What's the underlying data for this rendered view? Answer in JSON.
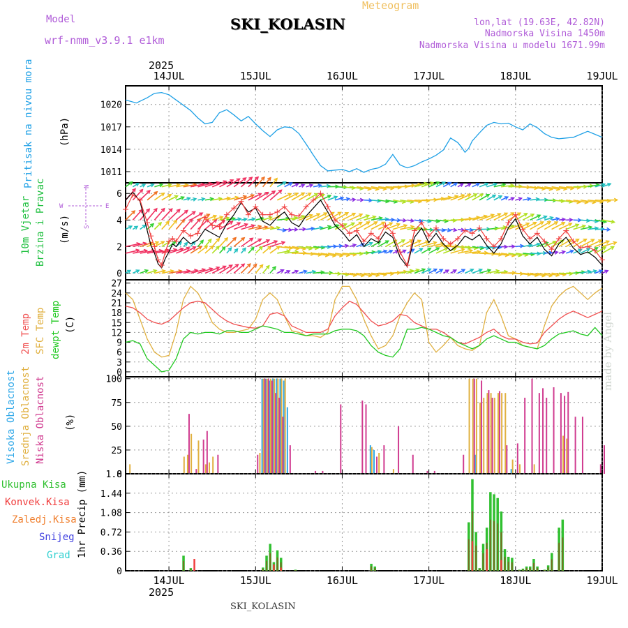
{
  "header": {
    "model_label": "Model",
    "model_value": "wrf-nmm_v3.9.1 e1km",
    "meteogram": "Meteogram",
    "station": "SKI_KOLASIN",
    "lonlat": "lon,lat (19.63E, 42.82N)",
    "elevation": "Nadmorska Visina 1450m",
    "model_elevation": "Nadmorska Visina u modelu 1671.99m"
  },
  "footer": {
    "station": "SKI_KOLASIN",
    "watermark": "made by Angel"
  },
  "time_axis": {
    "year": "2025",
    "days": [
      "14JUL",
      "15JUL",
      "16JUL",
      "17JUL",
      "18JUL",
      "19JUL"
    ]
  },
  "colors": {
    "pressure": "#1ea0e6",
    "wind_label": "#20c040",
    "wind_speed": "#000000",
    "wind_gust": "#f03c3c",
    "t2m": "#f05050",
    "tsfc": "#e0b040",
    "dewpt": "#20c820",
    "cloud_high": "#30a8e8",
    "cloud_mid": "#e0b040",
    "cloud_low": "#d03c90",
    "precip_total": "#30c030",
    "precip_conv": "#f03c3c",
    "precip_frozen": "#f08030",
    "snow": "#4040e0",
    "graupel": "#30d0d0",
    "compass": "#b05cd8"
  },
  "panels": {
    "pressure": {
      "label": "Pritisak na nivou mora",
      "unit": "(hPa)",
      "ticks": [
        "1020",
        "1017",
        "1014",
        "1011"
      ]
    },
    "wind": {
      "label1": "10m Vjetar",
      "label2": "Brzina i Pravac",
      "unit": "(m/s)",
      "ticks": [
        "6",
        "4",
        "2",
        "0"
      ],
      "compass": {
        "w": "W",
        "e": "E",
        "n": "N",
        "s": "S"
      }
    },
    "temp": {
      "label_t2m": "2m Temp",
      "label_sfc": "SFC Temp",
      "label_dew": "dewpt Temp",
      "unit": "(C)",
      "ticks": [
        "27",
        "24",
        "21",
        "18",
        "15",
        "12",
        "9",
        "6",
        "3",
        "0"
      ]
    },
    "cloud": {
      "label_high": "Visoka Oblacnost",
      "label_mid": "Srednja Oblacnost",
      "label_low": "Niska Oblacnost",
      "unit": "(%)",
      "ticks": [
        "100",
        "75",
        "50",
        "25",
        "0"
      ]
    },
    "precip": {
      "label_total": "Ukupna Kisa",
      "label_conv": "Konvek.Kisa",
      "label_frozen": "Zaledj.Kisa",
      "label_snow": "Snijeg",
      "label_graupel": "Grad",
      "unit": "1hr Precip (mm)",
      "ticks": [
        "1.8",
        "1.44",
        "1.08",
        "0.72",
        "0.36",
        "0"
      ]
    }
  },
  "chart_data": {
    "type": "line",
    "x_hours": [
      -12,
      120
    ],
    "pressure": {
      "ylim": [
        1009.5,
        1022.5
      ],
      "x": [
        -12,
        -9,
        -6,
        -4,
        -2,
        0,
        2,
        4,
        6,
        8,
        10,
        12,
        14,
        16,
        18,
        20,
        22,
        24,
        26,
        28,
        30,
        32,
        34,
        36,
        38,
        40,
        42,
        44,
        46,
        48,
        50,
        52,
        54,
        56,
        58,
        60,
        62,
        64,
        66,
        68,
        70,
        72,
        74,
        76,
        78,
        80,
        81,
        82,
        83,
        84,
        86,
        88,
        90,
        92,
        94,
        96,
        98,
        100,
        102,
        104,
        106,
        108,
        110,
        112,
        114,
        116,
        118,
        120
      ],
      "y": [
        1020.6,
        1020.2,
        1020.9,
        1021.5,
        1021.6,
        1021.3,
        1020.6,
        1019.9,
        1019.2,
        1018.2,
        1017.4,
        1017.6,
        1018.9,
        1019.3,
        1018.6,
        1017.8,
        1018.4,
        1017.4,
        1016.5,
        1015.7,
        1016.6,
        1017.0,
        1016.9,
        1016.1,
        1014.7,
        1013.2,
        1011.8,
        1011.1,
        1011.2,
        1011.3,
        1011.0,
        1011.4,
        1010.9,
        1011.3,
        1011.5,
        1012.0,
        1013.3,
        1011.9,
        1011.5,
        1011.8,
        1012.3,
        1012.7,
        1013.2,
        1013.9,
        1015.5,
        1014.9,
        1014.3,
        1013.6,
        1014.1,
        1015.1,
        1016.2,
        1017.2,
        1017.6,
        1017.4,
        1017.5,
        1017.0,
        1016.6,
        1017.4,
        1016.9,
        1016.1,
        1015.6,
        1015.4,
        1015.5,
        1015.6,
        1016.0,
        1016.4,
        1016.0,
        1015.6
      ]
    },
    "wind_speed": {
      "ylim": [
        -0.5,
        6.8
      ],
      "x": [
        -12,
        -10,
        -8,
        -6,
        -5,
        -4,
        -3,
        -2,
        -1,
        0,
        1,
        2,
        4,
        6,
        8,
        10,
        12,
        14,
        16,
        18,
        20,
        22,
        24,
        26,
        28,
        30,
        32,
        34,
        36,
        38,
        40,
        42,
        44,
        46,
        48,
        50,
        52,
        54,
        56,
        58,
        60,
        62,
        64,
        66,
        68,
        70,
        72,
        74,
        76,
        78,
        80,
        82,
        84,
        86,
        88,
        90,
        92,
        94,
        96,
        98,
        100,
        102,
        104,
        106,
        108,
        110,
        112,
        114,
        116,
        118,
        120
      ],
      "y": [
        5.5,
        6.1,
        5.4,
        3.2,
        2.1,
        1.5,
        0.7,
        0.4,
        1.1,
        1.6,
        2.2,
        2.0,
        2.7,
        2.2,
        2.5,
        3.3,
        3.0,
        2.7,
        3.7,
        4.4,
        5.3,
        4.6,
        4.9,
        3.9,
        3.6,
        4.2,
        4.6,
        3.8,
        3.5,
        4.3,
        4.9,
        5.5,
        4.6,
        3.6,
        3.1,
        2.4,
        2.9,
        2.0,
        2.6,
        2.3,
        3.1,
        2.7,
        1.2,
        0.5,
        2.7,
        3.4,
        2.3,
        3.0,
        2.2,
        1.7,
        2.1,
        2.8,
        2.5,
        2.9,
        2.1,
        1.5,
        2.2,
        3.4,
        4.1,
        2.8,
        2.2,
        2.7,
        1.8,
        1.3,
        2.2,
        2.7,
        1.9,
        1.4,
        1.6,
        1.2,
        0.6
      ]
    },
    "wind_gust": {
      "x": [
        -12,
        -10,
        -8,
        -6,
        -5,
        -4,
        -3,
        -2,
        -1,
        0,
        1,
        2,
        4,
        6,
        8,
        10,
        12,
        14,
        16,
        18,
        20,
        22,
        24,
        26,
        28,
        30,
        32,
        34,
        36,
        38,
        40,
        42,
        44,
        46,
        48,
        50,
        52,
        54,
        56,
        58,
        60,
        62,
        64,
        66,
        68,
        70,
        72,
        74,
        76,
        78,
        80,
        82,
        84,
        86,
        88,
        90,
        92,
        94,
        96,
        98,
        100,
        102,
        104,
        106,
        108,
        110,
        112,
        114,
        116,
        118,
        120
      ],
      "y": [
        4.8,
        5.9,
        5.5,
        3.8,
        2.8,
        2.0,
        1.0,
        0.6,
        1.6,
        2.4,
        2.6,
        2.4,
        3.2,
        2.8,
        3.0,
        4.2,
        3.6,
        3.5,
        4.4,
        4.9,
        5.4,
        4.4,
        5.0,
        4.4,
        4.4,
        4.6,
        5.0,
        4.4,
        4.3,
        5.0,
        5.5,
        6.0,
        5.0,
        4.0,
        3.6,
        3.0,
        3.2,
        2.4,
        3.0,
        2.6,
        3.6,
        3.0,
        1.6,
        0.6,
        3.2,
        3.8,
        2.8,
        3.4,
        2.6,
        2.2,
        2.6,
        3.2,
        3.0,
        3.4,
        2.6,
        2.0,
        2.6,
        3.8,
        4.4,
        3.3,
        2.6,
        3.0,
        2.4,
        1.8,
        2.6,
        3.2,
        2.4,
        1.9,
        2.0,
        1.7,
        1.0
      ]
    },
    "temperature": {
      "ylim": [
        -1.5,
        28
      ],
      "x": [
        -12,
        -10,
        -8,
        -6,
        -4,
        -2,
        0,
        2,
        4,
        6,
        8,
        10,
        12,
        14,
        16,
        18,
        20,
        22,
        24,
        26,
        28,
        30,
        32,
        34,
        36,
        38,
        40,
        42,
        44,
        46,
        48,
        50,
        52,
        54,
        56,
        58,
        60,
        62,
        64,
        66,
        68,
        70,
        72,
        74,
        76,
        78,
        80,
        82,
        84,
        86,
        88,
        90,
        92,
        94,
        96,
        98,
        100,
        102,
        104,
        106,
        108,
        110,
        112,
        114,
        116,
        118,
        120
      ],
      "t2m": [
        20.0,
        19.5,
        18.0,
        16.0,
        15.0,
        14.5,
        15.5,
        17.5,
        19.5,
        21.0,
        21.5,
        21.0,
        19.0,
        17.0,
        15.5,
        14.5,
        14.0,
        13.5,
        13.3,
        14.0,
        17.5,
        18.0,
        17.0,
        14.0,
        13.0,
        12.0,
        12.0,
        12.0,
        13.0,
        17.0,
        19.5,
        21.5,
        20.5,
        18.0,
        15.5,
        14.0,
        14.5,
        15.5,
        17.5,
        17.0,
        15.0,
        14.0,
        13.0,
        13.0,
        12.0,
        10.5,
        9.0,
        8.5,
        9.5,
        10.5,
        12.0,
        13.0,
        11.0,
        10.0,
        10.0,
        9.0,
        8.5,
        8.8,
        12.0,
        14.0,
        16.0,
        17.5,
        18.5,
        17.5,
        16.5,
        17.5,
        18.5
      ],
      "sfc": [
        24.0,
        22.0,
        16.0,
        10.0,
        6.0,
        4.5,
        5.0,
        12.0,
        22.0,
        26.0,
        24.0,
        20.0,
        15.0,
        13.0,
        12.0,
        12.0,
        12.5,
        13.0,
        16.0,
        22.0,
        24.0,
        22.0,
        17.0,
        12.5,
        12.0,
        11.0,
        11.0,
        10.5,
        12.0,
        22.0,
        26.0,
        26.0,
        22.0,
        16.0,
        11.0,
        7.0,
        8.0,
        11.0,
        17.0,
        21.0,
        24.0,
        22.0,
        9.0,
        6.0,
        8.0,
        10.5,
        8.0,
        7.0,
        6.5,
        8.0,
        18.0,
        22.0,
        17.0,
        11.0,
        10.0,
        8.0,
        7.5,
        7.0,
        14.0,
        20.0,
        23.0,
        25.0,
        26.0,
        24.0,
        22.0,
        24.0,
        25.5
      ],
      "dewpt": [
        9.0,
        9.5,
        8.5,
        4.0,
        2.0,
        0.0,
        0.5,
        4.0,
        10.0,
        12.0,
        11.5,
        12.0,
        12.0,
        11.5,
        12.5,
        12.5,
        12.0,
        12.0,
        13.0,
        14.0,
        13.5,
        13.0,
        12.0,
        12.0,
        11.5,
        11.0,
        11.5,
        11.5,
        11.5,
        12.5,
        13.0,
        13.0,
        12.5,
        11.0,
        8.0,
        6.0,
        5.0,
        4.5,
        7.0,
        13.0,
        13.0,
        13.5,
        13.0,
        12.0,
        11.0,
        10.5,
        9.0,
        8.0,
        7.0,
        8.0,
        10.0,
        11.0,
        10.0,
        9.0,
        9.0,
        8.0,
        7.5,
        7.0,
        8.0,
        10.0,
        11.5,
        12.0,
        12.5,
        11.5,
        11.0,
        13.5,
        11.0
      ]
    },
    "cloud_low": [
      [
        -11,
        0
      ],
      [
        -9,
        0
      ],
      [
        -6,
        0
      ],
      [
        5,
        63
      ],
      [
        7,
        5
      ],
      [
        9,
        36
      ],
      [
        10,
        45
      ],
      [
        13,
        20
      ],
      [
        24,
        20
      ],
      [
        26,
        100
      ],
      [
        27,
        100
      ],
      [
        28,
        98
      ],
      [
        29,
        85
      ],
      [
        30,
        80
      ],
      [
        31,
        60
      ],
      [
        33,
        30
      ],
      [
        40,
        3
      ],
      [
        42,
        3
      ],
      [
        47,
        73
      ],
      [
        53,
        77
      ],
      [
        54,
        73
      ],
      [
        57,
        18
      ],
      [
        59,
        30
      ],
      [
        63,
        50
      ],
      [
        67,
        20
      ],
      [
        71,
        3
      ],
      [
        73,
        3
      ],
      [
        81,
        20
      ],
      [
        84,
        100
      ],
      [
        86,
        98
      ],
      [
        88,
        88
      ],
      [
        89,
        80
      ],
      [
        91,
        87
      ],
      [
        93,
        30
      ],
      [
        96,
        32
      ],
      [
        98,
        80
      ],
      [
        100,
        100
      ],
      [
        102,
        85
      ],
      [
        103,
        90
      ],
      [
        104,
        80
      ],
      [
        106,
        91
      ],
      [
        108,
        85
      ],
      [
        109,
        82
      ],
      [
        110,
        86
      ],
      [
        112,
        60
      ],
      [
        114,
        60
      ],
      [
        119,
        10
      ],
      [
        120,
        30
      ]
    ],
    "cloud_mid": [
      [
        -11,
        10
      ],
      [
        4,
        18
      ],
      [
        5,
        20
      ],
      [
        6,
        42
      ],
      [
        8,
        35
      ],
      [
        10,
        10
      ],
      [
        11,
        12
      ],
      [
        12,
        18
      ],
      [
        25,
        22
      ],
      [
        26,
        100
      ],
      [
        27,
        100
      ],
      [
        28,
        100
      ],
      [
        29,
        100
      ],
      [
        30,
        100
      ],
      [
        31,
        100
      ],
      [
        32,
        100
      ],
      [
        56,
        28
      ],
      [
        58,
        22
      ],
      [
        62,
        5
      ],
      [
        83,
        100
      ],
      [
        84,
        100
      ],
      [
        85,
        100
      ],
      [
        86,
        75
      ],
      [
        87,
        80
      ],
      [
        88,
        85
      ],
      [
        89,
        85
      ],
      [
        90,
        80
      ],
      [
        91,
        85
      ],
      [
        92,
        85
      ],
      [
        93,
        85
      ],
      [
        95,
        15
      ],
      [
        97,
        10
      ],
      [
        101,
        10
      ],
      [
        109,
        40
      ],
      [
        110,
        37
      ]
    ],
    "cloud_high": [
      [
        26,
        100
      ],
      [
        27,
        100
      ],
      [
        28,
        98
      ],
      [
        29,
        100
      ],
      [
        30,
        100
      ],
      [
        31,
        100
      ],
      [
        32,
        98
      ],
      [
        33,
        70
      ],
      [
        56,
        30
      ],
      [
        57,
        25
      ],
      [
        85,
        20
      ],
      [
        95,
        5
      ]
    ],
    "precip_total": [
      [
        4,
        0.28
      ],
      [
        6,
        0.05
      ],
      [
        26,
        0.06
      ],
      [
        27,
        0.28
      ],
      [
        28,
        0.5
      ],
      [
        29,
        0.16
      ],
      [
        30,
        0.38
      ],
      [
        31,
        0.24
      ],
      [
        35,
        0.02
      ],
      [
        56,
        0.13
      ],
      [
        57,
        0.08
      ],
      [
        83,
        0.9
      ],
      [
        84,
        1.7
      ],
      [
        85,
        0.72
      ],
      [
        86,
        0.05
      ],
      [
        87,
        0.5
      ],
      [
        88,
        0.8
      ],
      [
        89,
        1.46
      ],
      [
        90,
        1.42
      ],
      [
        91,
        1.35
      ],
      [
        92,
        1.1
      ],
      [
        93,
        0.4
      ],
      [
        94,
        0.26
      ],
      [
        95,
        0.24
      ],
      [
        97,
        0.02
      ],
      [
        98,
        0.04
      ],
      [
        99,
        0.08
      ],
      [
        100,
        0.08
      ],
      [
        101,
        0.22
      ],
      [
        102,
        0.08
      ],
      [
        104,
        0.02
      ],
      [
        105,
        0.1
      ],
      [
        106,
        0.33
      ],
      [
        108,
        0.8
      ],
      [
        109,
        0.95
      ]
    ],
    "precip_conv": [
      [
        7,
        0.22
      ],
      [
        29,
        0.12
      ],
      [
        31,
        0.06
      ],
      [
        84,
        0.55
      ],
      [
        88,
        0.4
      ],
      [
        92,
        0.2
      ]
    ]
  }
}
